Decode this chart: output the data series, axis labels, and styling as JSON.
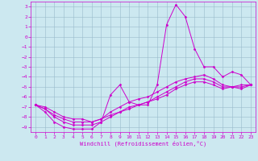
{
  "title": "",
  "xlabel": "Windchill (Refroidissement éolien,°C)",
  "xlim": [
    -0.5,
    23.5
  ],
  "ylim": [
    -9.5,
    3.5
  ],
  "yticks": [
    3,
    2,
    1,
    0,
    -1,
    -2,
    -3,
    -4,
    -5,
    -6,
    -7,
    -8,
    -9
  ],
  "xticks": [
    0,
    1,
    2,
    3,
    4,
    5,
    6,
    7,
    8,
    9,
    10,
    11,
    12,
    13,
    14,
    15,
    16,
    17,
    18,
    19,
    20,
    21,
    22,
    23
  ],
  "bg_color": "#cce8f0",
  "line_color": "#cc00cc",
  "grid_color": "#99bbcc",
  "line1_y": [
    -6.8,
    -7.5,
    -8.5,
    -9.0,
    -9.2,
    -9.2,
    -9.2,
    -8.5,
    -5.8,
    -4.8,
    -6.5,
    -6.8,
    -6.8,
    -4.8,
    1.2,
    3.2,
    2.0,
    -1.2,
    -3.0,
    -3.0,
    -4.0,
    -3.5,
    -3.8,
    -4.8
  ],
  "line2_y": [
    -6.8,
    -7.2,
    -7.8,
    -8.2,
    -8.5,
    -8.5,
    -8.5,
    -8.2,
    -7.5,
    -7.0,
    -6.5,
    -6.2,
    -6.0,
    -5.5,
    -5.0,
    -4.5,
    -4.2,
    -4.0,
    -3.8,
    -4.2,
    -4.8,
    -5.0,
    -5.0,
    -4.8
  ],
  "line3_y": [
    -6.8,
    -7.0,
    -7.5,
    -8.0,
    -8.2,
    -8.2,
    -8.5,
    -8.2,
    -7.8,
    -7.5,
    -7.2,
    -6.8,
    -6.5,
    -6.2,
    -5.8,
    -5.2,
    -4.8,
    -4.5,
    -4.5,
    -4.8,
    -5.2,
    -5.0,
    -4.8,
    -4.8
  ],
  "line4_y": [
    -6.8,
    -7.2,
    -8.0,
    -8.5,
    -8.8,
    -8.8,
    -8.8,
    -8.5,
    -8.0,
    -7.5,
    -7.0,
    -6.8,
    -6.5,
    -6.0,
    -5.5,
    -5.0,
    -4.5,
    -4.2,
    -4.2,
    -4.5,
    -5.0,
    -5.0,
    -5.2,
    -4.8
  ],
  "marker_size": 1.5,
  "linewidth": 0.7,
  "tick_labelsize": 4.5,
  "xlabel_fontsize": 5.0
}
